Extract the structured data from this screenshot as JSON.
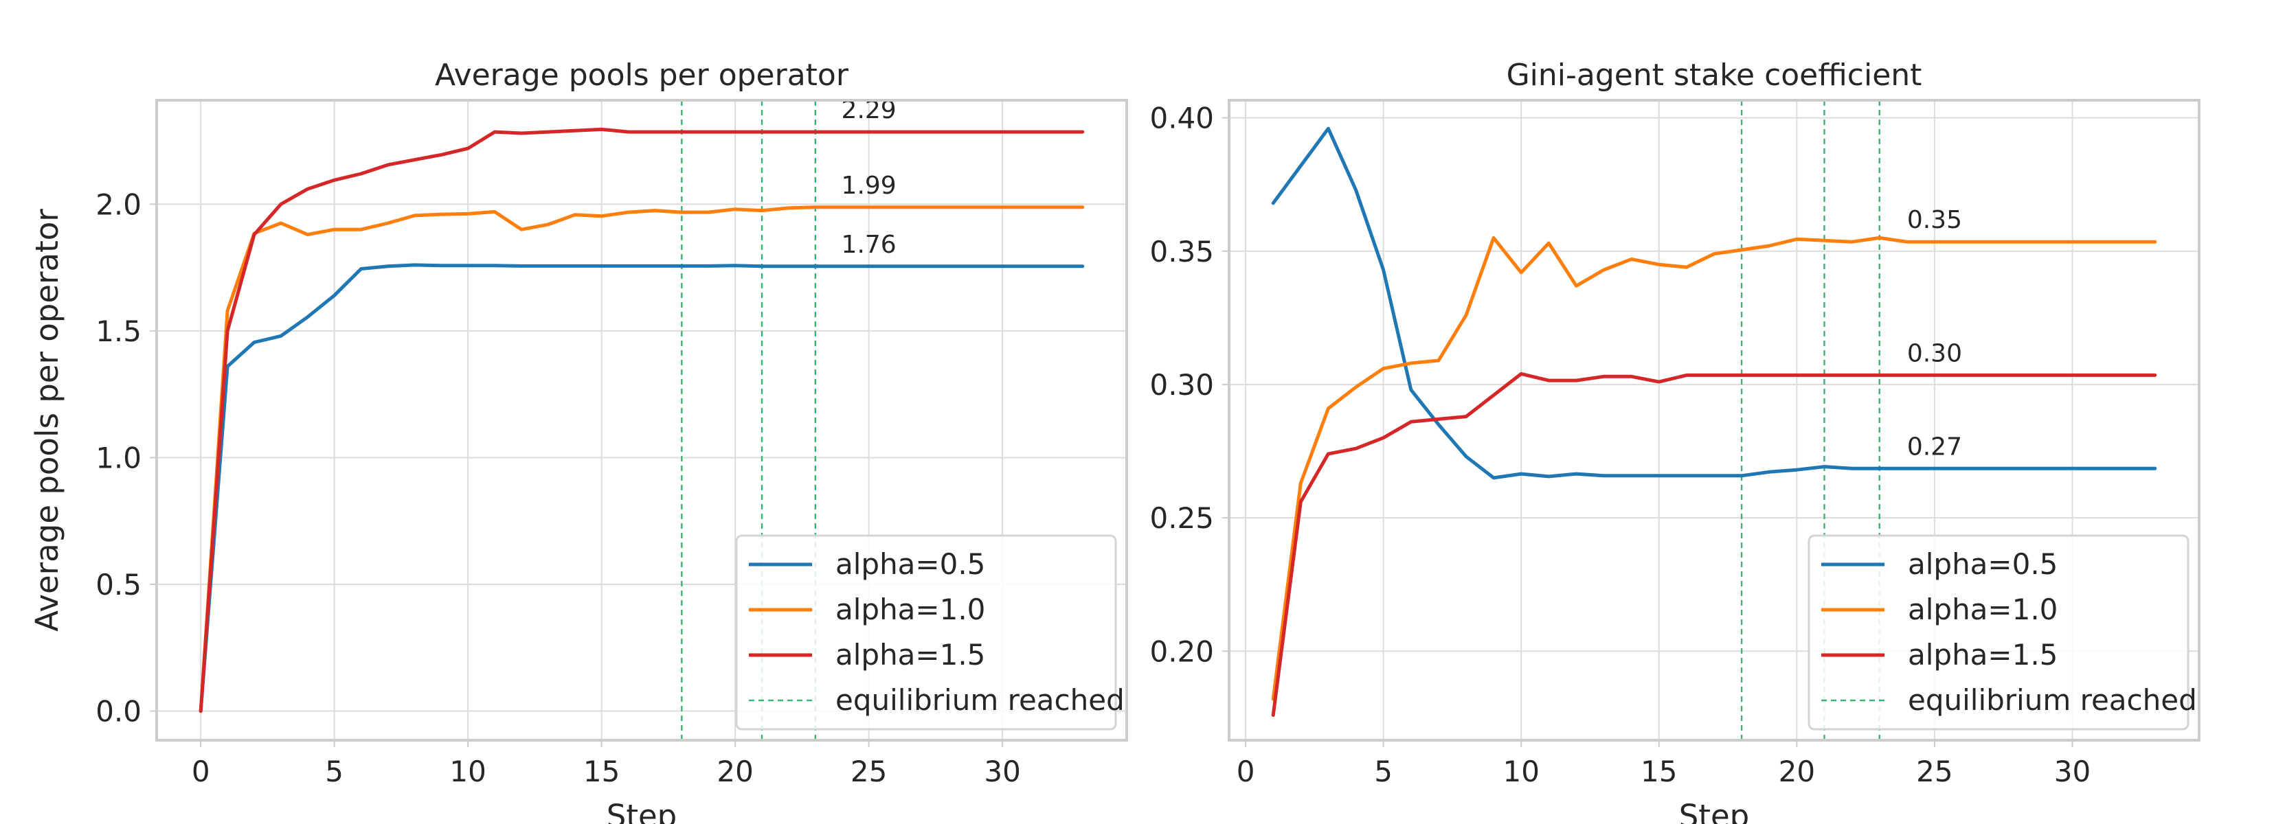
{
  "chart_data": [
    {
      "type": "line",
      "title": "Average pools per operator",
      "xlabel": "Step",
      "ylabel": "Average pools per operator",
      "xlim": [
        -1.65,
        34.65
      ],
      "ylim": [
        -0.115,
        2.41
      ],
      "xticks": [
        0,
        5,
        10,
        15,
        20,
        25,
        30
      ],
      "xtick_labels": [
        "0",
        "5",
        "10",
        "15",
        "20",
        "25",
        "30"
      ],
      "yticks": [
        0.0,
        0.5,
        1.0,
        1.5,
        2.0
      ],
      "ytick_labels": [
        "0.0",
        "0.5",
        "1.0",
        "1.5",
        "2.0"
      ],
      "grid": true,
      "legend_position": "bottom-right",
      "equilibrium_steps": [
        18,
        21,
        23
      ],
      "equilibrium_label": "equilibrium reached",
      "series": [
        {
          "name": "alpha=0.5",
          "color": "#1f77b4",
          "x": [
            0,
            1,
            2,
            3,
            4,
            5,
            6,
            7,
            8,
            9,
            10,
            11,
            12,
            13,
            14,
            15,
            16,
            17,
            18,
            19,
            20,
            21,
            22,
            23,
            24,
            25,
            26,
            27,
            28,
            29,
            30,
            31,
            32,
            33
          ],
          "y": [
            0.0,
            1.36,
            1.455,
            1.48,
            1.555,
            1.64,
            1.745,
            1.755,
            1.76,
            1.758,
            1.758,
            1.758,
            1.756,
            1.756,
            1.756,
            1.756,
            1.756,
            1.756,
            1.756,
            1.756,
            1.758,
            1.755,
            1.755,
            1.755,
            1.755,
            1.755,
            1.755,
            1.755,
            1.755,
            1.755,
            1.755,
            1.755,
            1.755,
            1.755
          ],
          "end_label": "1.76"
        },
        {
          "name": "alpha=1.0",
          "color": "#ff7f0e",
          "x": [
            0,
            1,
            2,
            3,
            4,
            5,
            6,
            7,
            8,
            9,
            10,
            11,
            12,
            13,
            14,
            15,
            16,
            17,
            18,
            19,
            20,
            21,
            22,
            23,
            24,
            25,
            26,
            27,
            28,
            29,
            30,
            31,
            32,
            33
          ],
          "y": [
            0.0,
            1.58,
            1.885,
            1.925,
            1.88,
            1.9,
            1.9,
            1.925,
            1.955,
            1.96,
            1.962,
            1.97,
            1.9,
            1.92,
            1.958,
            1.953,
            1.968,
            1.975,
            1.968,
            1.968,
            1.98,
            1.975,
            1.985,
            1.988,
            1.988,
            1.988,
            1.988,
            1.988,
            1.988,
            1.988,
            1.988,
            1.988,
            1.988,
            1.988
          ],
          "end_label": "1.99"
        },
        {
          "name": "alpha=1.5",
          "color": "#d62728",
          "x": [
            0,
            1,
            2,
            3,
            4,
            5,
            6,
            7,
            8,
            9,
            10,
            11,
            12,
            13,
            14,
            15,
            16,
            17,
            18,
            19,
            20,
            21,
            22,
            23,
            24,
            25,
            26,
            27,
            28,
            29,
            30,
            31,
            32,
            33
          ],
          "y": [
            0.0,
            1.5,
            1.88,
            2.0,
            2.06,
            2.095,
            2.12,
            2.155,
            2.175,
            2.195,
            2.22,
            2.285,
            2.28,
            2.285,
            2.29,
            2.295,
            2.285,
            2.285,
            2.285,
            2.285,
            2.285,
            2.285,
            2.285,
            2.285,
            2.285,
            2.285,
            2.285,
            2.285,
            2.285,
            2.285,
            2.285,
            2.285,
            2.285,
            2.285
          ],
          "end_label": "2.29"
        }
      ]
    },
    {
      "type": "line",
      "title": "Gini-agent stake coefficient",
      "xlabel": "Step",
      "ylabel": "",
      "xlim": [
        -0.6,
        34.6
      ],
      "ylim": [
        0.1666,
        0.4066
      ],
      "xticks": [
        0,
        5,
        10,
        15,
        20,
        25,
        30
      ],
      "xtick_labels": [
        "0",
        "5",
        "10",
        "15",
        "20",
        "25",
        "30"
      ],
      "yticks": [
        0.2,
        0.25,
        0.3,
        0.35,
        0.4
      ],
      "ytick_labels": [
        "0.20",
        "0.25",
        "0.30",
        "0.35",
        "0.40"
      ],
      "grid": true,
      "legend_position": "bottom-right",
      "equilibrium_steps": [
        18,
        21,
        23
      ],
      "equilibrium_label": "equilibrium reached",
      "series": [
        {
          "name": "alpha=0.5",
          "color": "#1f77b4",
          "x": [
            1,
            2,
            3,
            4,
            5,
            6,
            7,
            8,
            9,
            10,
            11,
            12,
            13,
            14,
            15,
            16,
            17,
            18,
            19,
            20,
            21,
            22,
            23,
            24,
            25,
            26,
            27,
            28,
            29,
            30,
            31,
            32,
            33
          ],
          "y": [
            0.368,
            0.382,
            0.396,
            0.373,
            0.343,
            0.298,
            0.285,
            0.273,
            0.265,
            0.2665,
            0.2655,
            0.2665,
            0.2658,
            0.2658,
            0.2658,
            0.2658,
            0.2658,
            0.2658,
            0.2672,
            0.268,
            0.2692,
            0.2685,
            0.2685,
            0.2685,
            0.2685,
            0.2685,
            0.2685,
            0.2685,
            0.2685,
            0.2685,
            0.2685,
            0.2685,
            0.2685
          ],
          "end_label": "0.27"
        },
        {
          "name": "alpha=1.0",
          "color": "#ff7f0e",
          "x": [
            1,
            2,
            3,
            4,
            5,
            6,
            7,
            8,
            9,
            10,
            11,
            12,
            13,
            14,
            15,
            16,
            17,
            18,
            19,
            20,
            21,
            22,
            23,
            24,
            25,
            26,
            27,
            28,
            29,
            30,
            31,
            32,
            33
          ],
          "y": [
            0.182,
            0.263,
            0.291,
            0.299,
            0.306,
            0.308,
            0.309,
            0.326,
            0.355,
            0.342,
            0.353,
            0.337,
            0.343,
            0.347,
            0.345,
            0.344,
            0.349,
            0.3505,
            0.352,
            0.3545,
            0.354,
            0.3535,
            0.355,
            0.3535,
            0.3535,
            0.3535,
            0.3535,
            0.3535,
            0.3535,
            0.3535,
            0.3535,
            0.3535,
            0.3535
          ],
          "end_label": "0.35"
        },
        {
          "name": "alpha=1.5",
          "color": "#d62728",
          "x": [
            1,
            2,
            3,
            4,
            5,
            6,
            7,
            8,
            9,
            10,
            11,
            12,
            13,
            14,
            15,
            16,
            17,
            18,
            19,
            20,
            21,
            22,
            23,
            24,
            25,
            26,
            27,
            28,
            29,
            30,
            31,
            32,
            33
          ],
          "y": [
            0.176,
            0.256,
            0.274,
            0.276,
            0.28,
            0.286,
            0.287,
            0.288,
            0.296,
            0.304,
            0.3015,
            0.3015,
            0.303,
            0.303,
            0.301,
            0.3035,
            0.3035,
            0.3035,
            0.3035,
            0.3035,
            0.3035,
            0.3035,
            0.3035,
            0.3035,
            0.3035,
            0.3035,
            0.3035,
            0.3035,
            0.3035,
            0.3035,
            0.3035,
            0.3035,
            0.3035
          ],
          "end_label": "0.30"
        }
      ]
    }
  ]
}
